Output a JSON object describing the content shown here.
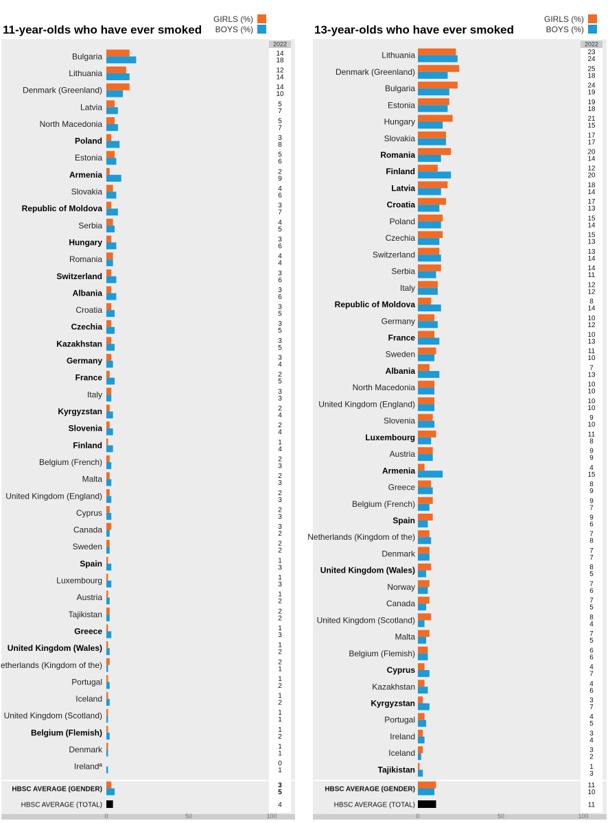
{
  "colors": {
    "girls": "#F26B25",
    "boys": "#1B9BD7",
    "total": "#000000",
    "panel": "#ECECEC",
    "axisbar": "#CDCDCD"
  },
  "legend": {
    "girls": "GIRLS (%)",
    "boys": "BOYS (%)"
  },
  "chart_data": [
    {
      "type": "bar",
      "title": "11-year-olds who have ever smoked",
      "year_label": "2022",
      "xlim": [
        0,
        100
      ],
      "xticks": [
        "0",
        "50",
        "100"
      ],
      "categories": [
        "Bulgaria",
        "Lithuania",
        "Denmark (Greenland)",
        "Latvia",
        "North Macedonia",
        "Poland",
        "Estonia",
        "Armenia",
        "Slovakia",
        "Republic of Moldova",
        "Serbia",
        "Hungary",
        "Romania",
        "Switzerland",
        "Albania",
        "Croatia",
        "Czechia",
        "Kazakhstan",
        "Germany",
        "France",
        "Italy",
        "Kyrgyzstan",
        "Slovenia",
        "Finland",
        "Belgium (French)",
        "Malta",
        "United Kingdom (England)",
        "Cyprus",
        "Canada",
        "Sweden",
        "Spain",
        "Luxembourg",
        "Austria",
        "Tajikistan",
        "Greece",
        "United Kingdom (Wales)",
        "Netherlands (Kingdom of the)",
        "Portugal",
        "Iceland",
        "United Kingdom (Scotland)",
        "Belgium (Flemish)",
        "Denmark",
        "Irelandª"
      ],
      "bold": [
        "Poland",
        "Armenia",
        "Republic of Moldova",
        "Hungary",
        "Switzerland",
        "Albania",
        "Czechia",
        "Kazakhstan",
        "Germany",
        "France",
        "Kyrgyzstan",
        "Slovenia",
        "Finland",
        "Spain",
        "Greece",
        "United Kingdom (Wales)",
        "Belgium (Flemish)"
      ],
      "series": [
        {
          "name": "GIRLS (%)",
          "values": [
            14,
            12,
            14,
            5,
            5,
            3,
            5,
            2,
            4,
            3,
            4,
            3,
            4,
            3,
            3,
            3,
            3,
            3,
            3,
            2,
            3,
            2,
            2,
            1,
            2,
            2,
            2,
            2,
            3,
            2,
            1,
            1,
            1,
            2,
            1,
            1,
            2,
            1,
            1,
            1,
            1,
            1,
            0
          ]
        },
        {
          "name": "BOYS (%)",
          "values": [
            18,
            14,
            10,
            7,
            7,
            8,
            6,
            9,
            6,
            7,
            5,
            6,
            4,
            6,
            6,
            5,
            5,
            5,
            4,
            5,
            3,
            4,
            4,
            4,
            3,
            3,
            3,
            3,
            2,
            2,
            3,
            3,
            2,
            2,
            3,
            2,
            1,
            2,
            2,
            1,
            2,
            1,
            1
          ]
        }
      ],
      "average": {
        "gender_label": "HBSC AVERAGE (GENDER)",
        "total_label": "HBSC AVERAGE (TOTAL)",
        "girls": 3,
        "boys": 5,
        "total": 4
      }
    },
    {
      "type": "bar",
      "title": "13-year-olds who have ever smoked",
      "year_label": "2022",
      "xlim": [
        0,
        100
      ],
      "xticks": [
        "0",
        "50",
        "100"
      ],
      "categories": [
        "Lithuania",
        "Denmark (Greenland)",
        "Bulgaria",
        "Estonia",
        "Hungary",
        "Slovakia",
        "Romania",
        "Finland",
        "Latvia",
        "Croatia",
        "Poland",
        "Czechia",
        "Switzerland",
        "Serbia",
        "Italy",
        "Republic of Moldova",
        "Germany",
        "France",
        "Sweden",
        "Albania",
        "North Macedonia",
        "United Kingdom (England)",
        "Slovenia",
        "Luxembourg",
        "Austria",
        "Armenia",
        "Greece",
        "Belgium (French)",
        "Spain",
        "Netherlands (Kingdom of the)",
        "Denmark",
        "United Kingdom (Wales)",
        "Norway",
        "Canada",
        "United Kingdom (Scotland)",
        "Malta",
        "Belgium (Flemish)",
        "Cyprus",
        "Kazakhstan",
        "Kyrgyzstan",
        "Portugal",
        "Ireland",
        "Iceland",
        "Tajikistan"
      ],
      "bold": [
        "Romania",
        "Finland",
        "Latvia",
        "Croatia",
        "Republic of Moldova",
        "France",
        "Albania",
        "Luxembourg",
        "Armenia",
        "Spain",
        "United Kingdom (Wales)",
        "Cyprus",
        "Kyrgyzstan",
        "Tajikistan"
      ],
      "series": [
        {
          "name": "GIRLS (%)",
          "values": [
            23,
            25,
            24,
            19,
            21,
            17,
            20,
            12,
            18,
            17,
            15,
            15,
            13,
            14,
            12,
            8,
            10,
            10,
            11,
            7,
            10,
            10,
            9,
            11,
            9,
            4,
            8,
            9,
            9,
            7,
            7,
            8,
            7,
            7,
            8,
            7,
            6,
            4,
            4,
            3,
            4,
            3,
            3,
            1
          ]
        },
        {
          "name": "BOYS (%)",
          "values": [
            24,
            18,
            19,
            18,
            15,
            17,
            14,
            20,
            14,
            13,
            14,
            13,
            14,
            11,
            12,
            14,
            12,
            13,
            10,
            13,
            10,
            10,
            10,
            8,
            9,
            15,
            9,
            7,
            6,
            8,
            7,
            5,
            6,
            5,
            4,
            5,
            6,
            7,
            6,
            7,
            5,
            4,
            2,
            3
          ]
        }
      ],
      "average": {
        "gender_label": "HBSC AVERAGE (GENDER)",
        "total_label": "HBSC AVERAGE (TOTAL)",
        "girls": 11,
        "boys": 10,
        "total": 11
      }
    }
  ]
}
